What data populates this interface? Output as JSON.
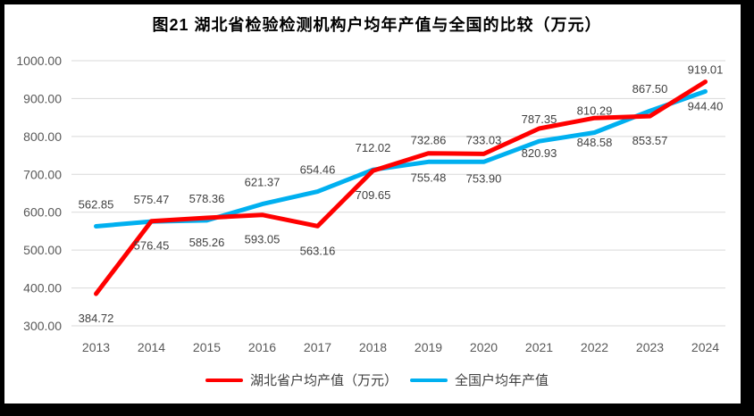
{
  "window": {
    "frame_color": "#000000",
    "background_color": "#FFFFFF"
  },
  "chart_data": {
    "type": "line",
    "title": "图21 湖北省检验检测机构户均年产值与全国的比较（万元）",
    "x": [
      "2013",
      "2014",
      "2015",
      "2016",
      "2017",
      "2018",
      "2019",
      "2020",
      "2021",
      "2022",
      "2023",
      "2024"
    ],
    "series": [
      {
        "name": "湖北省户均产值（万元）",
        "color": "#FF0000",
        "label_position": "below",
        "values": [
          384.72,
          576.45,
          585.26,
          593.05,
          563.16,
          709.65,
          755.48,
          753.9,
          820.93,
          848.58,
          853.57,
          944.4
        ]
      },
      {
        "name": "全国户均年产值",
        "color": "#00B0F0",
        "label_position": "above",
        "values": [
          562.85,
          575.47,
          578.36,
          621.37,
          654.46,
          712.02,
          732.86,
          733.03,
          787.35,
          810.29,
          867.5,
          919.01
        ]
      }
    ],
    "ylim": [
      300,
      1000
    ],
    "ytick_step": 100,
    "ytick_decimals": 2,
    "grid": true,
    "legend_position": "bottom",
    "styles": {
      "grid_color": "#D9D9D9",
      "tick_text_color": "#595959",
      "data_label_color": "#404040",
      "title_color": "#000000",
      "line_width": 5
    }
  }
}
